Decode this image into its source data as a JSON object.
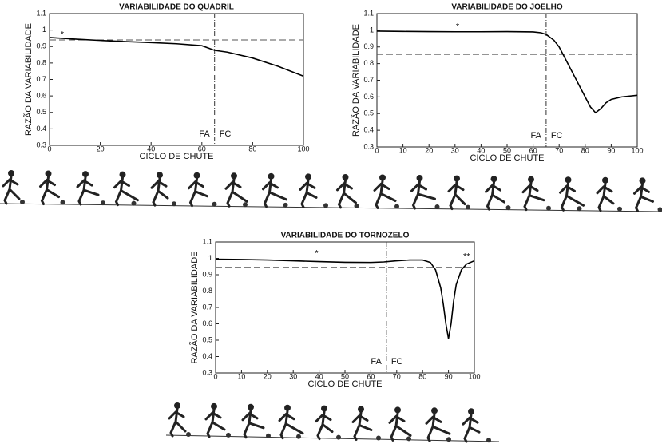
{
  "chart_data": [
    {
      "type": "line",
      "title": "VARIABILIDADE DO QUADRIL",
      "x_label": "CICLO DE CHUTE",
      "y_label": "RAZÃO DA VARIABILIDADE",
      "color": "#000000",
      "x": [
        0,
        5,
        10,
        20,
        30,
        40,
        50,
        60,
        65,
        70,
        80,
        90,
        100
      ],
      "values": [
        0.955,
        0.95,
        0.945,
        0.937,
        0.93,
        0.924,
        0.917,
        0.905,
        0.877,
        0.866,
        0.83,
        0.78,
        0.72
      ],
      "xlim": [
        0,
        100
      ],
      "xticks": [
        0,
        20,
        40,
        60,
        80,
        100
      ],
      "ylim": [
        0.3,
        1.1
      ],
      "yticks": [
        0.3,
        0.4,
        0.5,
        0.6,
        0.7,
        0.8,
        0.9,
        1,
        1.1
      ],
      "threshold": 0.94,
      "event_x": 65,
      "event_labels": [
        "FA",
        "FC"
      ],
      "annotations": [
        {
          "text": "*",
          "x": 5,
          "y": 0.97
        }
      ]
    },
    {
      "type": "line",
      "title": "VARIABILIDADE DO JOELHO",
      "x_label": "CICLO DE CHUTE",
      "y_label": "RAZÃO DA VARIABILIDADE",
      "color": "#000000",
      "x": [
        0,
        10,
        20,
        30,
        40,
        50,
        60,
        63,
        65,
        68,
        70,
        72,
        75,
        78,
        80,
        82,
        84,
        86,
        88,
        90,
        94,
        100
      ],
      "values": [
        0.995,
        0.993,
        0.992,
        0.991,
        0.991,
        0.992,
        0.99,
        0.985,
        0.975,
        0.94,
        0.9,
        0.84,
        0.75,
        0.66,
        0.6,
        0.54,
        0.505,
        0.53,
        0.565,
        0.585,
        0.6,
        0.61
      ],
      "xlim": [
        0,
        100
      ],
      "xticks": [
        0,
        10,
        20,
        30,
        40,
        50,
        60,
        70,
        80,
        90,
        100
      ],
      "ylim": [
        0.3,
        1.1
      ],
      "yticks": [
        0.3,
        0.4,
        0.5,
        0.6,
        0.7,
        0.8,
        0.9,
        1,
        1.1
      ],
      "threshold": 0.855,
      "event_x": 65,
      "event_labels": [
        "FA",
        "FC"
      ],
      "annotations": [
        {
          "text": "*",
          "x": 31,
          "y": 1.02
        }
      ]
    },
    {
      "type": "line",
      "title": "VARIABILIDADE DO TORNOZELO",
      "x_label": "CICLO DE CHUTE",
      "y_label": "RAZÃO DA VARIABILIDADE",
      "color": "#000000",
      "x": [
        0,
        10,
        20,
        30,
        40,
        50,
        60,
        65,
        70,
        75,
        80,
        83,
        85,
        87,
        88,
        89,
        90,
        91,
        92,
        93,
        95,
        97,
        100
      ],
      "values": [
        0.995,
        0.993,
        0.99,
        0.985,
        0.98,
        0.976,
        0.975,
        0.978,
        0.985,
        0.99,
        0.99,
        0.975,
        0.93,
        0.82,
        0.72,
        0.6,
        0.51,
        0.6,
        0.74,
        0.84,
        0.93,
        0.965,
        0.985
      ],
      "xlim": [
        0,
        100
      ],
      "xticks": [
        0,
        10,
        20,
        30,
        40,
        50,
        60,
        70,
        80,
        90,
        100
      ],
      "ylim": [
        0.3,
        1.1
      ],
      "yticks": [
        0.3,
        0.4,
        0.5,
        0.6,
        0.7,
        0.8,
        0.9,
        1,
        1.1
      ],
      "threshold": 0.945,
      "event_x": 66,
      "event_labels": [
        "FA",
        "FC"
      ],
      "annotations": [
        {
          "text": "*",
          "x": 39,
          "y": 1.03
        },
        {
          "text": "**",
          "x": 97,
          "y": 1.01
        }
      ]
    }
  ]
}
